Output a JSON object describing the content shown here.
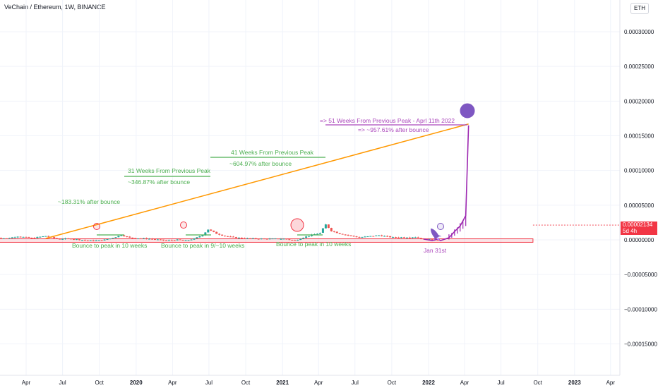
{
  "header": {
    "symbol_title": "VeChain / Ethereum, 1W, BINANCE",
    "currency_button": "ETH"
  },
  "price_tag": {
    "value": "0.00002134",
    "countdown": "5d 4h"
  },
  "colors": {
    "up": "#26a69a",
    "down": "#ef5350",
    "trend_line": "#ff9800",
    "support_line": "#f23645",
    "green_annotation": "#4caf50",
    "purple_annotation": "#ab47bc",
    "projection": "#9c27b0"
  },
  "chart_data": {
    "type": "candlestick",
    "y_ticks": [
      "0.00030000",
      "0.00025000",
      "0.00020000",
      "0.00015000",
      "0.00010000",
      "0.00005000",
      "0.00000000",
      "−0.00005000",
      "−0.00010000",
      "−0.00015000"
    ],
    "y_tick_values": [
      0.0003,
      0.00025,
      0.0002,
      0.00015,
      0.0001,
      5e-05,
      0,
      -5e-05,
      -0.0001,
      -0.00015
    ],
    "x_ticks": [
      {
        "label": "Apr",
        "bold": false
      },
      {
        "label": "Jul",
        "bold": false
      },
      {
        "label": "Oct",
        "bold": false
      },
      {
        "label": "2020",
        "bold": true
      },
      {
        "label": "Apr",
        "bold": false
      },
      {
        "label": "Jul",
        "bold": false
      },
      {
        "label": "Oct",
        "bold": false
      },
      {
        "label": "2021",
        "bold": true
      },
      {
        "label": "Apr",
        "bold": false
      },
      {
        "label": "Jul",
        "bold": false
      },
      {
        "label": "Oct",
        "bold": false
      },
      {
        "label": "2022",
        "bold": true
      },
      {
        "label": "Apr",
        "bold": false
      },
      {
        "label": "Jul",
        "bold": false
      },
      {
        "label": "Oct",
        "bold": false
      },
      {
        "label": "2023",
        "bold": true
      },
      {
        "label": "Apr",
        "bold": false
      }
    ],
    "x_tick_dates": [
      "2019-04-01",
      "2019-07-01",
      "2019-10-01",
      "2020-01-01",
      "2020-04-01",
      "2020-07-01",
      "2020-10-01",
      "2021-01-01",
      "2021-04-01",
      "2021-07-01",
      "2021-10-01",
      "2022-01-01",
      "2022-04-01",
      "2022-07-01",
      "2022-10-01",
      "2023-01-01",
      "2023-04-01"
    ],
    "price_path": [
      [
        "2019-01-07",
        3.5e-06
      ],
      [
        "2019-02-11",
        2e-06
      ],
      [
        "2019-03-11",
        5e-06
      ],
      [
        "2019-04-15",
        2.5e-06
      ],
      [
        "2019-05-20",
        5.5e-06
      ],
      [
        "2019-06-17",
        1.5e-06
      ],
      [
        "2019-07-22",
        1.5e-06
      ],
      [
        "2019-09-02",
        -1e-06
      ],
      [
        "2019-09-23",
        -1e-06
      ],
      [
        "2019-10-14",
        0
      ],
      [
        "2019-11-04",
        3e-06
      ],
      [
        "2019-11-25",
        7e-06
      ],
      [
        "2019-12-16",
        3e-06
      ],
      [
        "2020-02-03",
        1.5e-06
      ],
      [
        "2020-03-16",
        -1e-06
      ],
      [
        "2020-04-13",
        0
      ],
      [
        "2020-05-04",
        -1e-06
      ],
      [
        "2020-05-25",
        1.5e-06
      ],
      [
        "2020-06-15",
        7e-06
      ],
      [
        "2020-06-29",
        1.5e-05
      ],
      [
        "2020-07-20",
        9e-06
      ],
      [
        "2020-08-10",
        5.5e-06
      ],
      [
        "2020-08-31",
        3.5e-06
      ],
      [
        "2020-10-05",
        2e-06
      ],
      [
        "2020-11-16",
        1.5e-06
      ],
      [
        "2021-01-04",
        1.5e-06
      ],
      [
        "2021-02-01",
        -1e-06
      ],
      [
        "2021-02-22",
        3.5e-06
      ],
      [
        "2021-03-15",
        7e-06
      ],
      [
        "2021-04-05",
        1e-05
      ],
      [
        "2021-04-19",
        2.2e-05
      ],
      [
        "2021-05-03",
        1.3e-05
      ],
      [
        "2021-05-24",
        9e-06
      ],
      [
        "2021-06-14",
        6.5e-06
      ],
      [
        "2021-07-12",
        3.5e-06
      ],
      [
        "2021-08-30",
        6.5e-06
      ],
      [
        "2021-10-04",
        3.5e-06
      ],
      [
        "2021-11-29",
        4e-06
      ],
      [
        "2021-12-20",
        1e-06
      ],
      [
        "2022-01-24",
        0
      ]
    ],
    "projection_path": [
      [
        "2021-12-20",
        1e-06
      ],
      [
        "2022-01-10",
        -1e-06
      ],
      [
        "2022-01-24",
        1e-06
      ],
      [
        "2022-01-31",
        -1e-06
      ],
      [
        "2022-02-21",
        3e-06
      ],
      [
        "2022-03-07",
        1.2e-05
      ],
      [
        "2022-03-21",
        2e-05
      ],
      [
        "2022-04-04",
        3.5e-05
      ],
      [
        "2022-04-11",
        0.000165
      ]
    ],
    "trend_line": {
      "from": [
        "2019-05-20",
        2e-06
      ],
      "to": [
        "2022-04-11",
        0.000167
      ]
    },
    "support_zone": {
      "from": "2019-01-07",
      "to": "2022-09-19",
      "top": 1.5e-06,
      "bottom": -3.5e-06
    },
    "annotations": {
      "peak_2019": {
        "after_bounce": "~183.31% after bounce"
      },
      "peak_2020": {
        "weeks_label": "31 Weeks From Previous Peak",
        "after_bounce": "~346.87% after bounce"
      },
      "peak_2021": {
        "weeks_label": "41 Weeks From Previous Peak",
        "after_bounce": "~604.97% after bounce"
      },
      "peak_2022": {
        "weeks_label": "=> 51 Weeks From Previous Peak - Aprl 11th 2022",
        "after_bounce": "=> ~957.61% after bounce"
      },
      "bounce_1": "Bounce to peak in 10 weeks",
      "bounce_2": "Bounce to peak in 9/~10 weeks",
      "bounce_3": "Bounce to peak in 10 weeks",
      "projection_date": "Jan 31st"
    }
  }
}
